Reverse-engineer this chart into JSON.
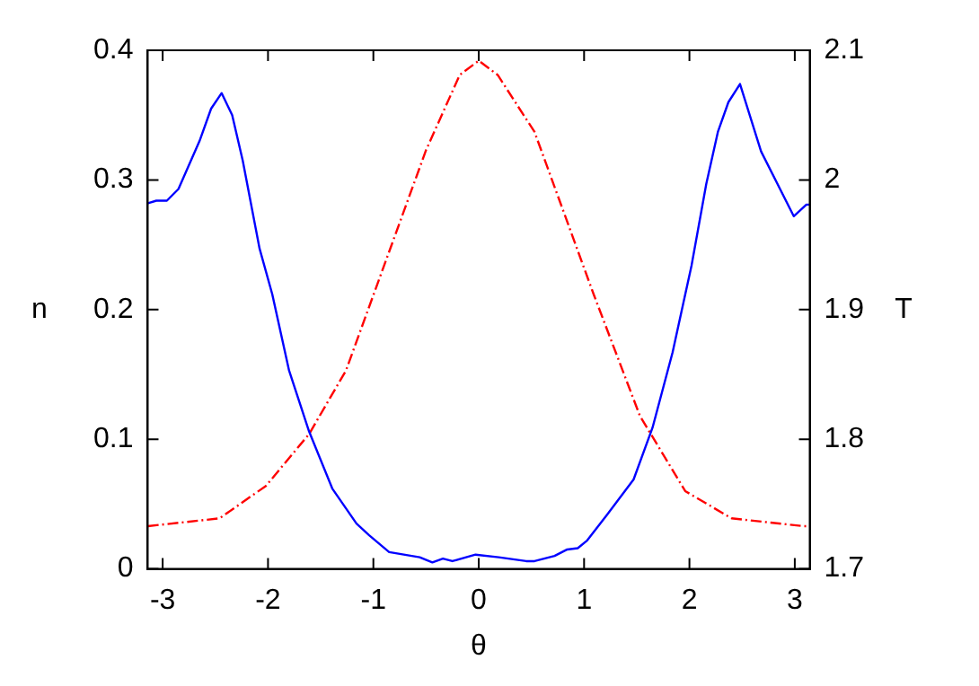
{
  "chart_data": {
    "type": "line",
    "xlabel": "θ",
    "ylabel": "n",
    "y2label": "T",
    "xlim": [
      -3.1416,
      3.1416
    ],
    "xticks": [
      -3,
      -2,
      -1,
      0,
      1,
      2,
      3
    ],
    "ylim": [
      0,
      0.4
    ],
    "yticks": [
      0,
      0.1,
      0.2,
      0.3,
      0.4
    ],
    "y2lim": [
      1.7,
      2.1
    ],
    "y2ticks": [
      1.7,
      1.8,
      1.9,
      2,
      2.1
    ],
    "grid": false,
    "legend": false,
    "marker": "none",
    "series": [
      {
        "color": "#0000ff",
        "line_style": "solid",
        "x": [
          -3.14,
          -3.06,
          -2.96,
          -2.85,
          -2.65,
          -2.54,
          -2.44,
          -2.34,
          -2.24,
          -2.08,
          -1.96,
          -1.8,
          -1.61,
          -1.39,
          -1.16,
          -1.04,
          -0.85,
          -0.56,
          -0.44,
          -0.34,
          -0.25,
          -0.03,
          0.19,
          0.45,
          0.53,
          0.72,
          0.84,
          0.94,
          1.03,
          1.22,
          1.47,
          1.65,
          1.84,
          2.02,
          2.16,
          2.27,
          2.37,
          2.48,
          2.68,
          2.86,
          2.99,
          3.11,
          3.14
        ],
        "values": [
          0.282,
          0.284,
          0.284,
          0.293,
          0.33,
          0.355,
          0.367,
          0.35,
          0.315,
          0.247,
          0.212,
          0.153,
          0.106,
          0.062,
          0.035,
          0.026,
          0.013,
          0.009,
          0.005,
          0.008,
          0.006,
          0.011,
          0.009,
          0.006,
          0.006,
          0.01,
          0.015,
          0.016,
          0.022,
          0.042,
          0.069,
          0.109,
          0.167,
          0.234,
          0.297,
          0.337,
          0.36,
          0.374,
          0.322,
          0.293,
          0.272,
          0.281,
          0.281
        ]
      },
      {
        "color": "#ff0000",
        "line_style": "dashed",
        "axis": "y2",
        "x": [
          -3.14,
          -2.46,
          -2.02,
          -1.61,
          -1.26,
          -0.88,
          -0.5,
          -0.18,
          0,
          0.18,
          0.53,
          1.09,
          1.53,
          1.96,
          2.4,
          3.08,
          3.14
        ],
        "values": [
          1.733,
          1.739,
          1.764,
          1.804,
          1.853,
          1.938,
          2.023,
          2.081,
          2.092,
          2.081,
          2.037,
          1.912,
          1.818,
          1.76,
          1.739,
          1.733,
          1.733
        ]
      }
    ]
  }
}
